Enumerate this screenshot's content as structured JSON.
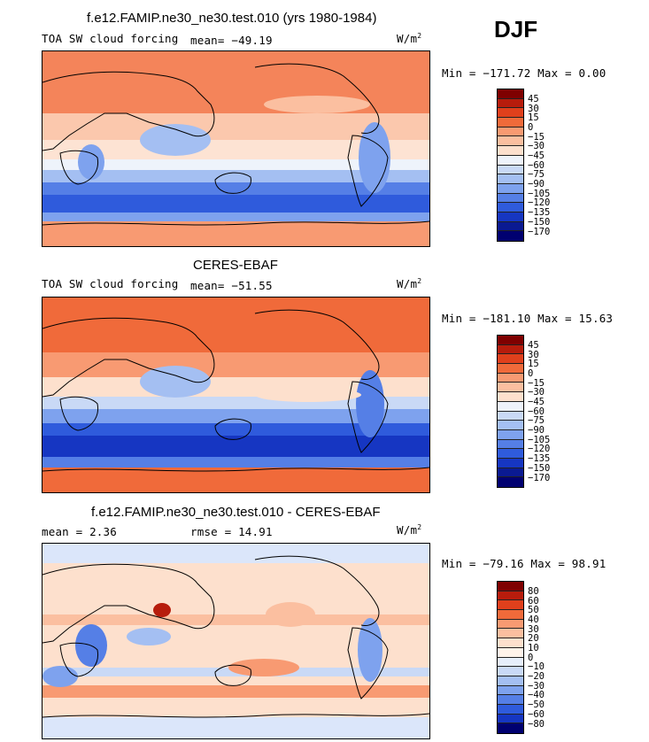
{
  "season": "DJF",
  "chart_data": [
    {
      "type": "heatmap",
      "title": "f.e12.FAMIP.ne30_ne30.test.010 (yrs 1980-1984)",
      "left_label": "TOA SW cloud forcing",
      "stat_text": "mean= −49.19",
      "units": "W/m",
      "units_sup": "2",
      "minmax_text": "Min = −171.72 Max =   0.00",
      "colorbar": {
        "labels": [
          "45",
          "30",
          "15",
          "0",
          "−15",
          "−30",
          "−45",
          "−60",
          "−75",
          "−90",
          "−105",
          "−120",
          "−135",
          "−150",
          "−170"
        ],
        "colors": [
          "#7f0000",
          "#b71c0c",
          "#e0401c",
          "#f06a3a",
          "#f89a72",
          "#fbbfa0",
          "#fde0cd",
          "#eef3fb",
          "#c9d9f6",
          "#a4bff2",
          "#7ea2ee",
          "#557fe6",
          "#2f5bdc",
          "#1636c2",
          "#0a1a92",
          "#000070"
        ]
      }
    },
    {
      "type": "heatmap",
      "title": "CERES-EBAF",
      "left_label": "TOA SW cloud forcing",
      "stat_text": "mean= −51.55",
      "units": "W/m",
      "units_sup": "2",
      "minmax_text": "Min = −181.10 Max =  15.63",
      "colorbar": {
        "labels": [
          "45",
          "30",
          "15",
          "0",
          "−15",
          "−30",
          "−45",
          "−60",
          "−75",
          "−90",
          "−105",
          "−120",
          "−135",
          "−150",
          "−170"
        ],
        "colors": [
          "#7f0000",
          "#b71c0c",
          "#e0401c",
          "#f06a3a",
          "#f89a72",
          "#fbbfa0",
          "#fde0cd",
          "#eef3fb",
          "#c9d9f6",
          "#a4bff2",
          "#7ea2ee",
          "#557fe6",
          "#2f5bdc",
          "#1636c2",
          "#0a1a92",
          "#000070"
        ]
      }
    },
    {
      "type": "heatmap",
      "title": "f.e12.FAMIP.ne30_ne30.test.010 - CERES-EBAF",
      "left_label": "mean =   2.36",
      "stat_text": "rmse =  14.91",
      "units": "W/m",
      "units_sup": "2",
      "minmax_text": "Min = −79.16 Max =  98.91",
      "colorbar": {
        "labels": [
          "80",
          "60",
          "50",
          "40",
          "30",
          "20",
          "10",
          "0",
          "−10",
          "−20",
          "−30",
          "−40",
          "−50",
          "−60",
          "−80"
        ],
        "colors": [
          "#7f0000",
          "#b71c0c",
          "#e0401c",
          "#f06a3a",
          "#f89a72",
          "#fbbfa0",
          "#fde0cd",
          "#fff3ea",
          "#e6eefb",
          "#c9d9f6",
          "#a4bff2",
          "#7ea2ee",
          "#557fe6",
          "#2f5bdc",
          "#1636c2",
          "#000070"
        ]
      }
    }
  ]
}
